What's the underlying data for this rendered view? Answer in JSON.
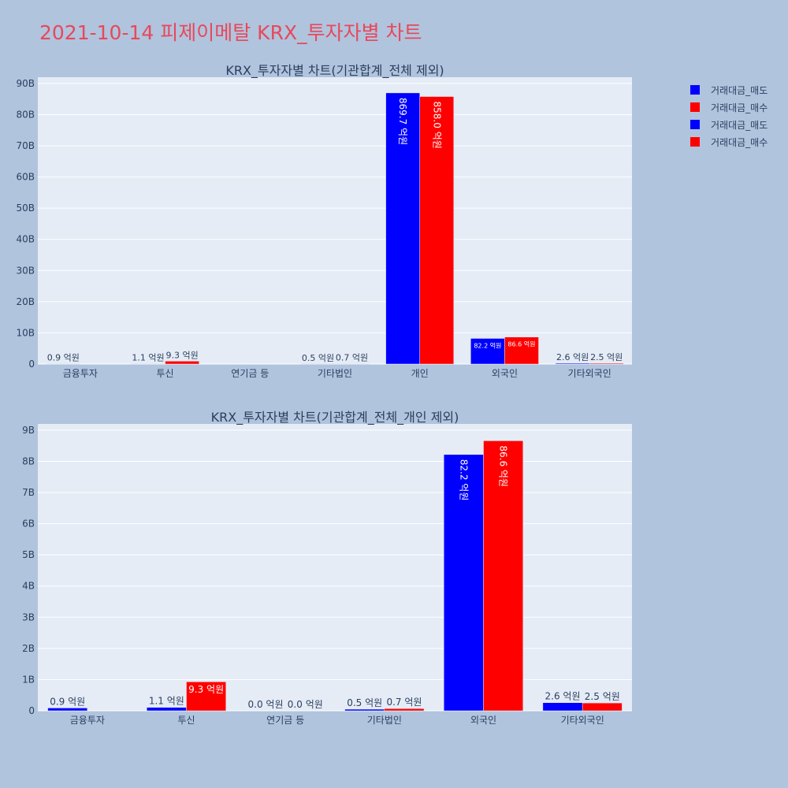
{
  "page_title": "2021-10-14 피제이메탈 KRX_투자자별 차트",
  "colors": {
    "sell": "#0000ff",
    "buy": "#ff0000",
    "plot_bg": "#e5ecf6",
    "page_bg": "#b0c4de",
    "title": "#e8485a"
  },
  "legend": {
    "placement": "top-right",
    "items": [
      {
        "name": "거래대금_매도",
        "color": "#0000ff"
      },
      {
        "name": "거래대금_매수",
        "color": "#ff0000"
      },
      {
        "name": "거래대금_매도",
        "color": "#0000ff"
      },
      {
        "name": "거래대금_매수",
        "color": "#ff0000"
      }
    ]
  },
  "chart_data": [
    {
      "type": "bar",
      "title": "KRX_투자자별 차트(기관합계_전체 제외)",
      "categories": [
        "금융투자",
        "투신",
        "연기금 등",
        "기타법인",
        "개인",
        "외국인",
        "기타외국인"
      ],
      "series": [
        {
          "name": "거래대금_매도",
          "values": [
            0.09,
            0.11,
            0,
            0.05,
            86.97,
            8.22,
            0.26
          ],
          "labels": [
            "0.9 억원",
            "1.1 억원",
            "",
            "0.5 억원",
            "869.7 억원",
            "82.2 억원",
            "2.6 억원"
          ]
        },
        {
          "name": "거래대금_매수",
          "values": [
            0,
            0.93,
            0,
            0.07,
            85.8,
            8.66,
            0.25
          ],
          "labels": [
            "",
            "9.3 억원",
            "",
            "0.7 억원",
            "858.0 억원",
            "86.6 억원",
            "2.5 억원"
          ]
        }
      ],
      "ylim": [
        0,
        92
      ],
      "yticks": [
        0,
        10,
        20,
        30,
        40,
        50,
        60,
        70,
        80,
        90
      ],
      "ytick_labels": [
        "0",
        "10B",
        "20B",
        "30B",
        "40B",
        "50B",
        "60B",
        "70B",
        "80B",
        "90B"
      ],
      "grid": true,
      "barmode": "group"
    },
    {
      "type": "bar",
      "title": "KRX_투자자별 차트(기관합계_전체_개인 제외)",
      "categories": [
        "금융투자",
        "투신",
        "연기금 등",
        "기타법인",
        "외국인",
        "기타외국인"
      ],
      "series": [
        {
          "name": "거래대금_매도",
          "values": [
            0.09,
            0.11,
            0,
            0.05,
            8.22,
            0.26
          ],
          "labels": [
            "0.9 억원",
            "1.1 억원",
            "0.0 억원",
            "0.5 억원",
            "82.2 억원",
            "2.6 억원"
          ]
        },
        {
          "name": "거래대금_매수",
          "values": [
            0,
            0.93,
            0,
            0.07,
            8.66,
            0.25
          ],
          "labels": [
            "",
            "9.3 억원",
            "0.0 억원",
            "0.7 억원",
            "86.6 억원",
            "2.5 억원"
          ]
        }
      ],
      "ylim": [
        0,
        9.2
      ],
      "yticks": [
        0,
        1,
        2,
        3,
        4,
        5,
        6,
        7,
        8,
        9
      ],
      "ytick_labels": [
        "0",
        "1B",
        "2B",
        "3B",
        "4B",
        "5B",
        "6B",
        "7B",
        "8B",
        "9B"
      ],
      "grid": true,
      "barmode": "group"
    }
  ]
}
